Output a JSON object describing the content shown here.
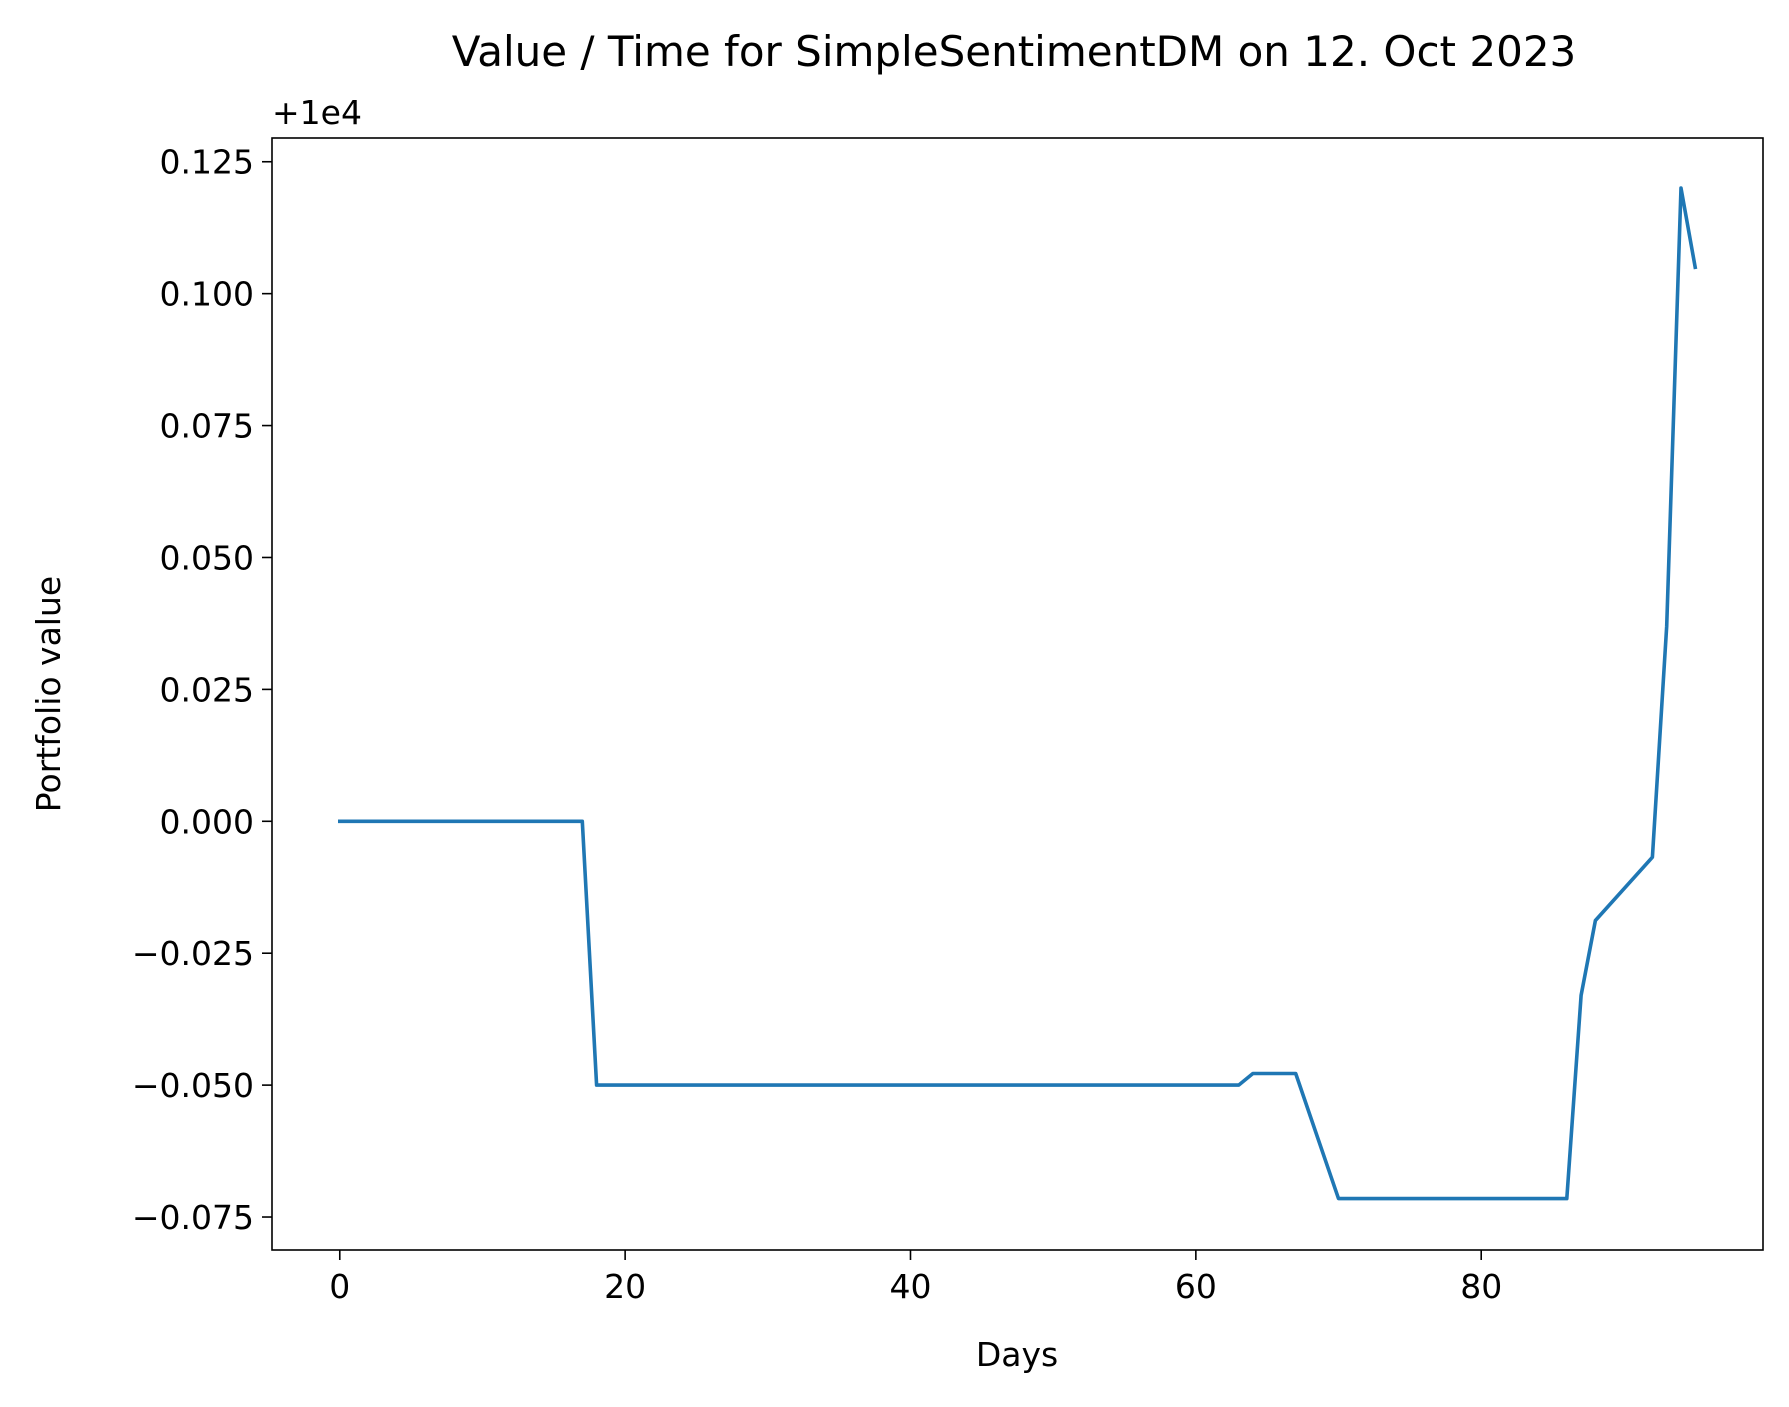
{
  "chart_data": {
    "type": "line",
    "title": "Value / Time for SimpleSentimentDM on 12. Oct 2023",
    "xlabel": "Days",
    "ylabel": "Portfolio value",
    "offset_text": "+1e4",
    "xlim": [
      -4.75,
      99.75
    ],
    "ylim": [
      -0.08125,
      0.1295
    ],
    "x_ticks": [
      0,
      20,
      40,
      60,
      80
    ],
    "x_tick_labels": [
      "0",
      "20",
      "40",
      "60",
      "80"
    ],
    "y_ticks": [
      -0.075,
      -0.05,
      -0.025,
      0.0,
      0.025,
      0.05,
      0.075,
      0.1,
      0.125
    ],
    "y_tick_labels": [
      "−0.075",
      "−0.050",
      "−0.025",
      "0.000",
      "0.025",
      "0.050",
      "0.075",
      "0.100",
      "0.125"
    ],
    "grid": false,
    "series": [
      {
        "color": "#1f77b4",
        "x": [
          0,
          17,
          18,
          63,
          64,
          67,
          70,
          86,
          87,
          88,
          92,
          93,
          94,
          95
        ],
        "y": [
          0.0,
          0.0,
          -0.05,
          -0.05,
          -0.0478,
          -0.0478,
          -0.0715,
          -0.0715,
          -0.033,
          -0.0188,
          -0.0068,
          0.037,
          0.12,
          0.105
        ]
      }
    ]
  }
}
